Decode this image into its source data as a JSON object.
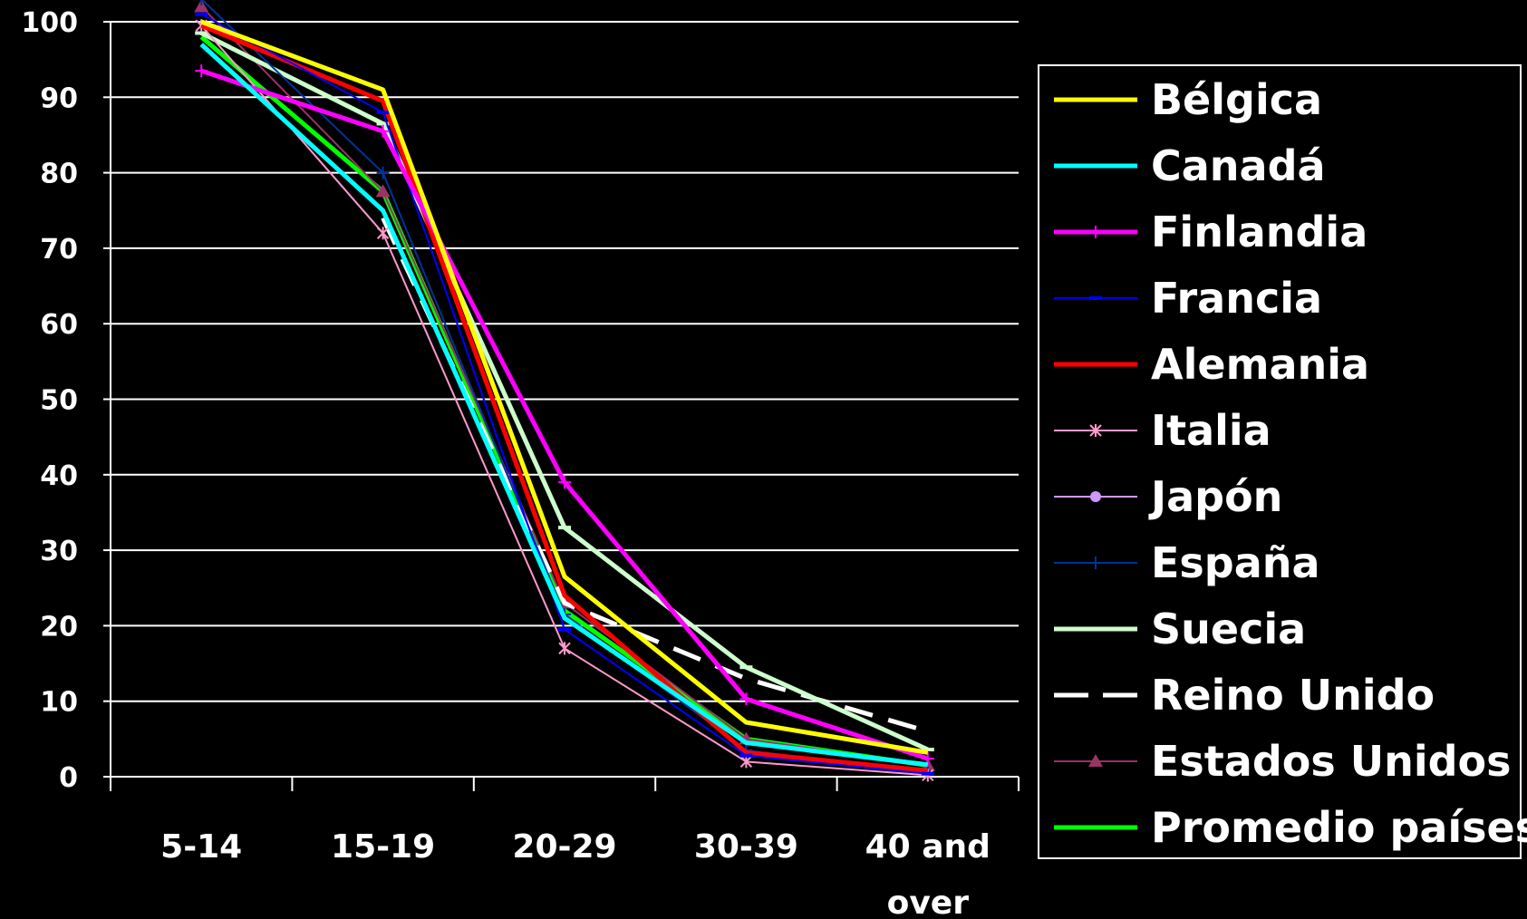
{
  "chart_data": {
    "type": "line",
    "title": "",
    "xlabel": "",
    "ylabel": "",
    "ylim": [
      0,
      100
    ],
    "y_ticks": [
      0,
      10,
      20,
      30,
      40,
      50,
      60,
      70,
      80,
      90,
      100
    ],
    "categories": [
      "5-14",
      "15-19",
      "20-29",
      "30-39",
      "40 and over"
    ],
    "grid": "horizontal",
    "legend_position": "right",
    "series": [
      {
        "name": "Bélgica",
        "color": "#ffff00",
        "style": "thick",
        "marker": "none",
        "values": [
          100,
          91,
          26.5,
          7.2,
          3.2
        ]
      },
      {
        "name": "Canadá",
        "color": "#00ffff",
        "style": "thick",
        "marker": "none",
        "values": [
          97,
          75,
          21,
          4.5,
          1.6
        ]
      },
      {
        "name": "Finlandia",
        "color": "#ff00ff",
        "style": "thick",
        "marker": "plus",
        "values": [
          93.5,
          85.5,
          39,
          10.3,
          2.4
        ]
      },
      {
        "name": "Francia",
        "color": "#0000ff",
        "style": "thin",
        "marker": "dash",
        "values": [
          101,
          88,
          19.5,
          2.8,
          0.4
        ]
      },
      {
        "name": "Alemania",
        "color": "#ff0000",
        "style": "thick",
        "marker": "none",
        "values": [
          99.5,
          89.5,
          24,
          3.2,
          0.8
        ]
      },
      {
        "name": "Italia",
        "color": "#ff99cc",
        "style": "thin",
        "marker": "star",
        "values": [
          99.5,
          72,
          17,
          2,
          0.2
        ]
      },
      {
        "name": "Japón",
        "color": "#cc99ff",
        "style": "thin",
        "marker": "circle",
        "values": [
          null,
          null,
          null,
          null,
          null
        ]
      },
      {
        "name": "España",
        "color": "#003399",
        "style": "thin",
        "marker": "plus",
        "values": [
          103,
          80,
          21.5,
          3.5,
          0.5
        ]
      },
      {
        "name": "Suecia",
        "color": "#ccffcc",
        "style": "thick",
        "marker": "dash",
        "values": [
          98.5,
          86.5,
          33,
          14.5,
          3.6
        ]
      },
      {
        "name": "Reino Unido",
        "color": "#ffffff",
        "style": "dashed",
        "marker": "none",
        "values": [
          null,
          74,
          23,
          13,
          6
        ]
      },
      {
        "name": "Estados Unidos",
        "color": "#993366",
        "style": "thin",
        "marker": "triangle",
        "values": [
          102,
          77.5,
          23,
          5,
          1.5
        ]
      },
      {
        "name": "Promedio países",
        "color": "#00ff00",
        "style": "thick",
        "marker": "none",
        "values": [
          98,
          77.5,
          22,
          5,
          1.5
        ]
      }
    ]
  }
}
